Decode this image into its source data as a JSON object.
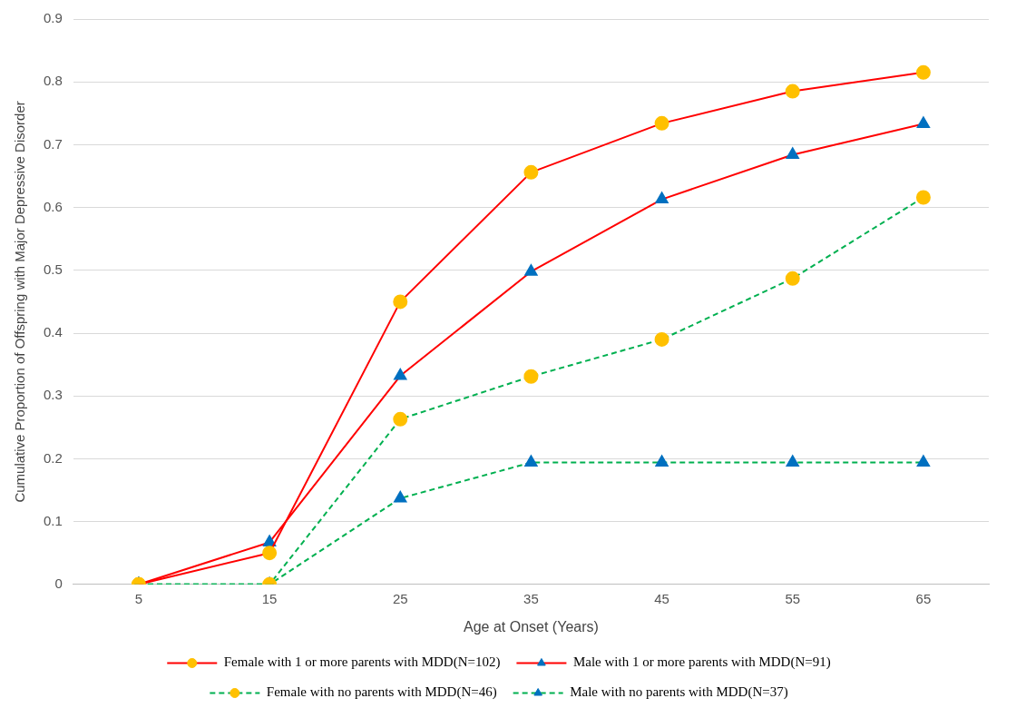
{
  "chart_data": {
    "type": "line",
    "xlabel": "Age at Onset (Years)",
    "ylabel": "Cumulative Proportion of Offspring with Major Depressive Disorder",
    "categories": [
      "5",
      "15",
      "25",
      "35",
      "45",
      "55",
      "65"
    ],
    "series": [
      {
        "name": "Female with 1 or more parents with MDD(N=102)",
        "color": "#ff0000",
        "colors": [
          "#ffc000",
          "#ffc000",
          "#ffc000",
          "#ffc000",
          "#ffc000",
          "#ffc000",
          "#ffc000"
        ],
        "marker": "circle",
        "line_style": "solid",
        "values": [
          0,
          0.05,
          0.45,
          0.656,
          0.734,
          0.785,
          0.815
        ]
      },
      {
        "name": "Male with 1 or more parents with MDD(N=91)",
        "color": "#ff0000",
        "colors": [
          "#0070c0",
          "#0070c0",
          "#0070c0",
          "#0070c0",
          "#0070c0",
          "#0070c0",
          "#0070c0"
        ],
        "marker": "triangle",
        "line_style": "solid",
        "values": [
          0,
          0.067,
          0.332,
          0.498,
          0.613,
          0.684,
          0.733
        ]
      },
      {
        "name": "Female with no parents with MDD(N=46)",
        "color": "#00b050",
        "colors": [
          "#ffc000",
          "#ffc000",
          "#ffc000",
          "#ffc000",
          "#ffc000",
          "#ffc000",
          "#ffc000"
        ],
        "marker": "circle",
        "line_style": "dashed",
        "values": [
          0,
          0,
          0.263,
          0.331,
          0.39,
          0.487,
          0.616
        ]
      },
      {
        "name": "Male with no parents with MDD(N=37)",
        "color": "#00b050",
        "colors": [
          "#0070c0",
          "#0070c0",
          "#0070c0",
          "#0070c0",
          "#0070c0",
          "#0070c0",
          "#0070c0"
        ],
        "marker": "triangle",
        "line_style": "dashed",
        "values": [
          0,
          0,
          0.137,
          0.194,
          0.194,
          0.194,
          0.194
        ]
      }
    ],
    "ylim": [
      0,
      0.9
    ],
    "yticks": [
      0,
      0.1,
      0.2,
      0.3,
      0.4,
      0.5,
      0.6,
      0.7,
      0.8,
      0.9
    ],
    "grid": "y",
    "legend": "bottom"
  }
}
